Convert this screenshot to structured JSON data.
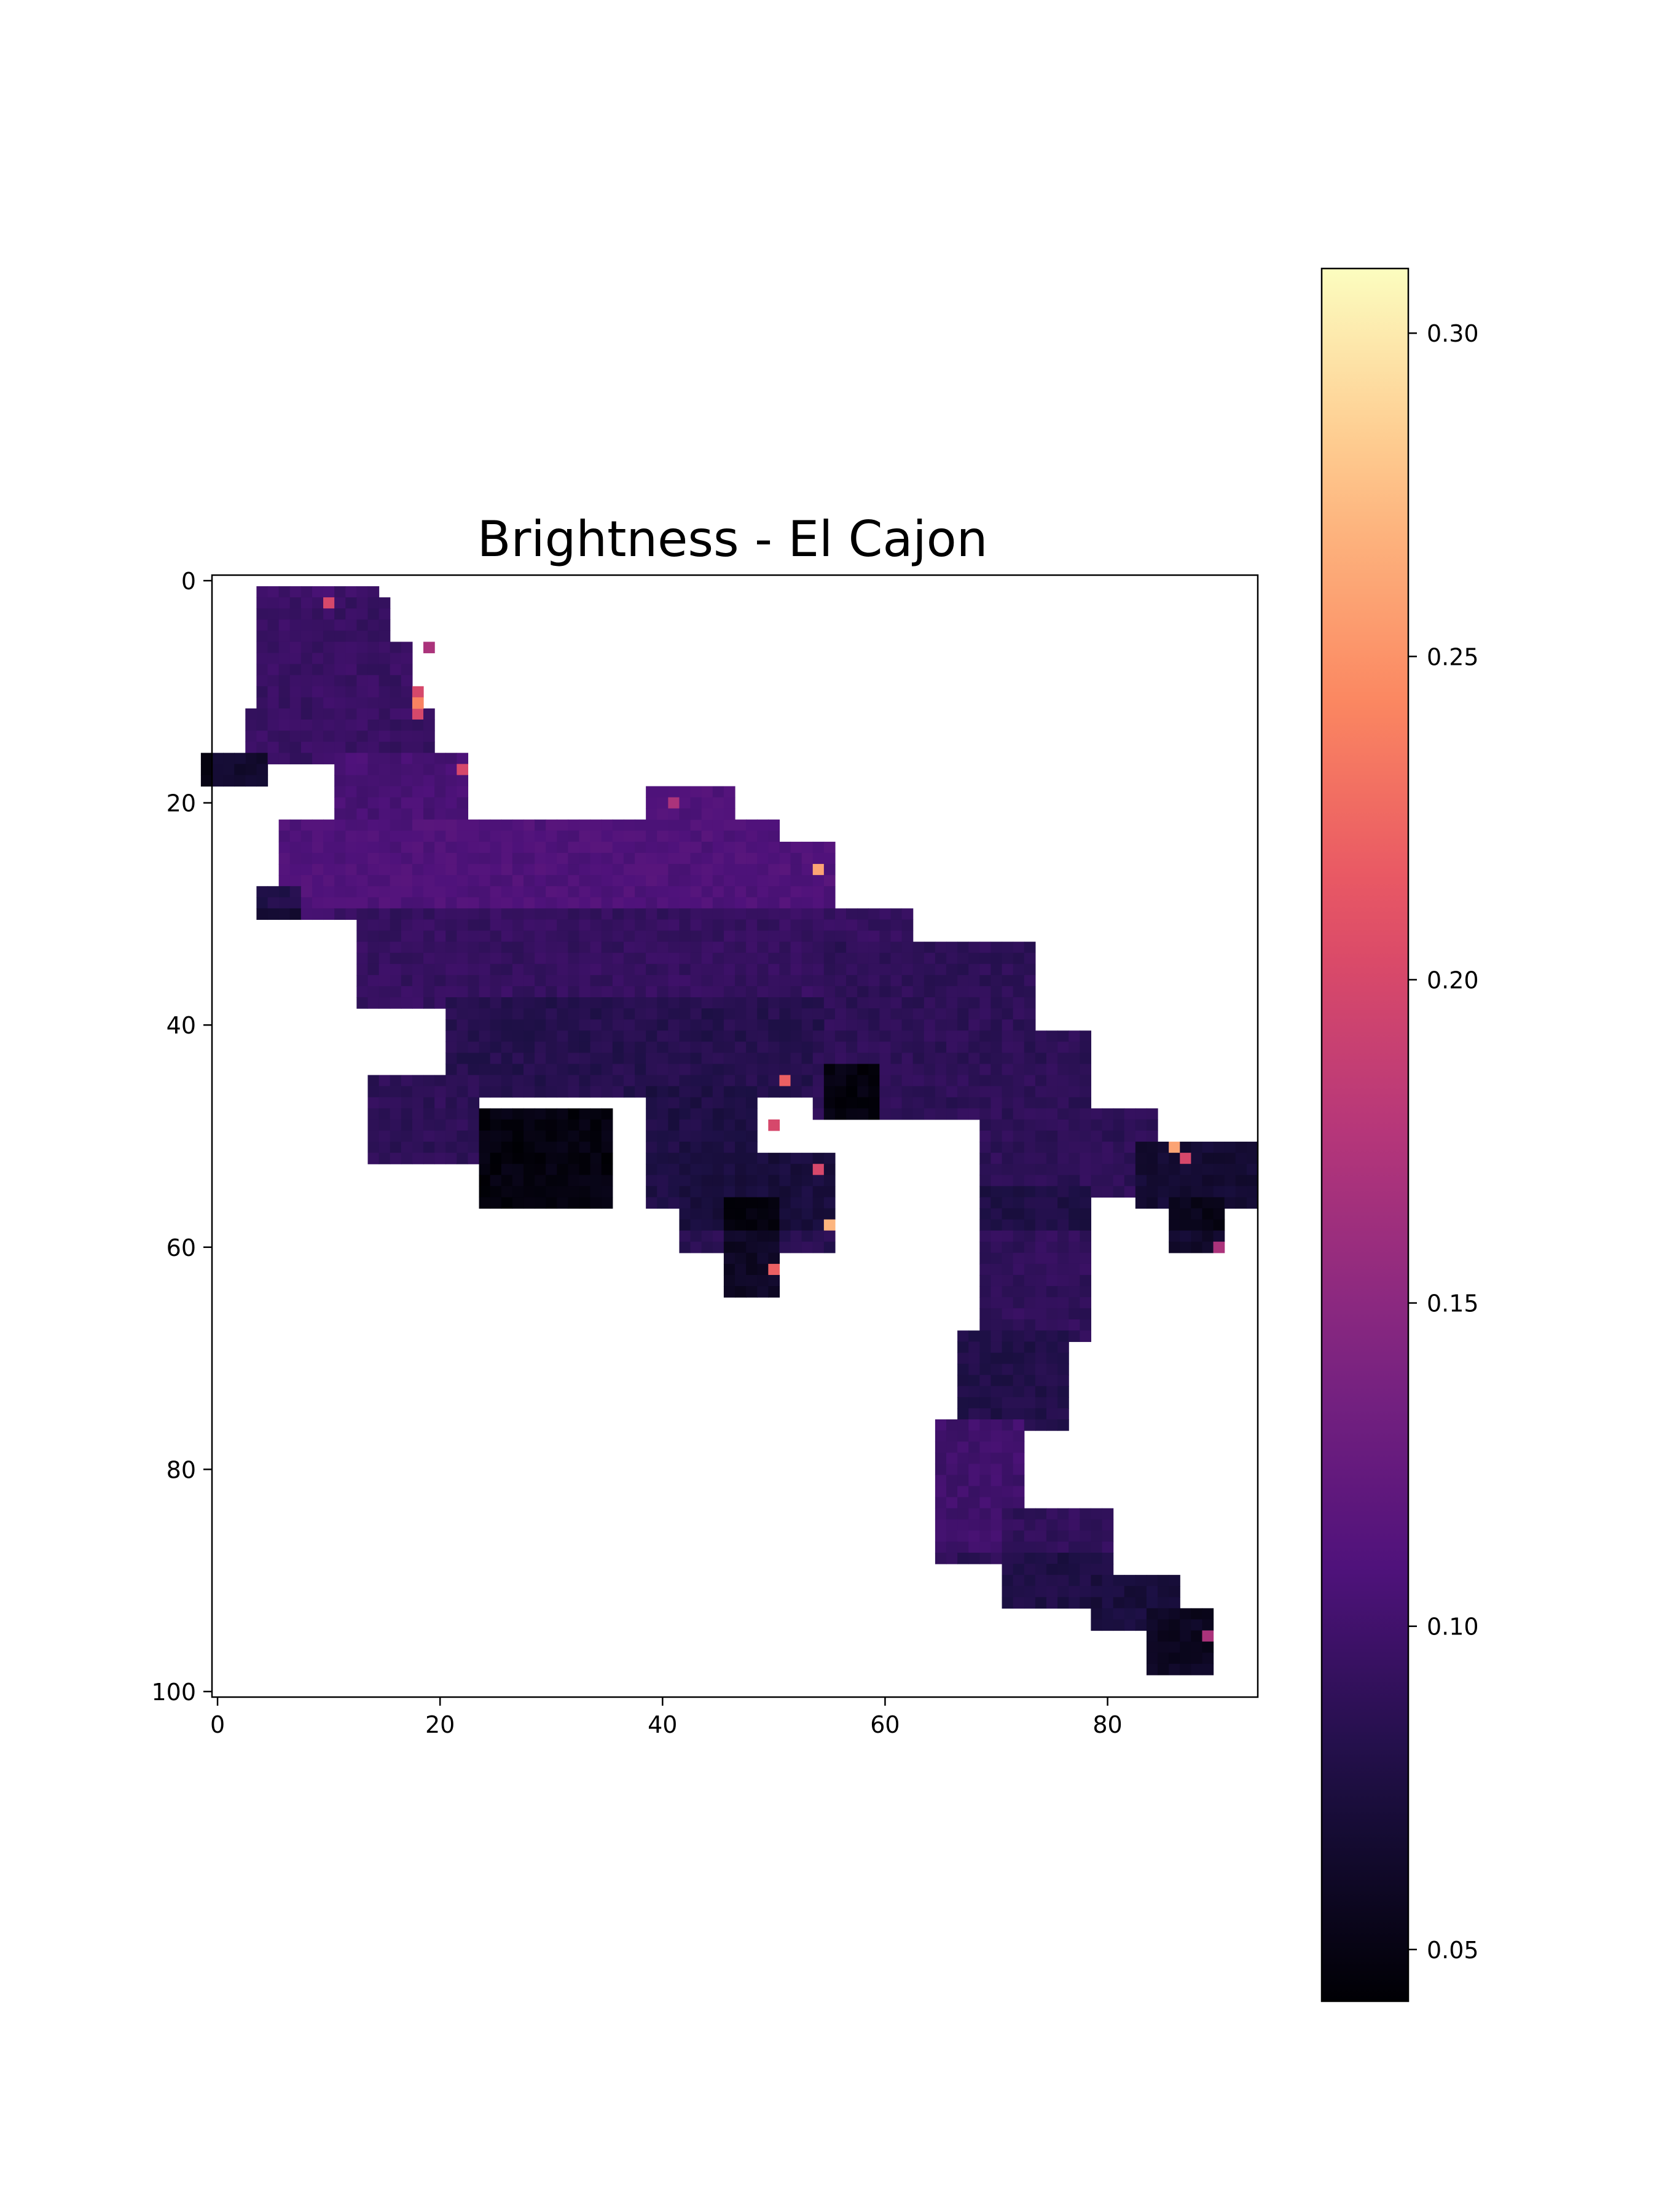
{
  "chart_data": {
    "type": "heatmap",
    "title": "Brightness - El Cajon",
    "xlabel": "",
    "ylabel": "",
    "x_ticks": [
      "0",
      "20",
      "40",
      "60",
      "80"
    ],
    "y_ticks": [
      "0",
      "20",
      "40",
      "60",
      "80",
      "100"
    ],
    "xlim": [
      -0.5,
      93.5
    ],
    "ylim": [
      100.5,
      -0.5
    ],
    "colormap": "magma",
    "colorbar": {
      "range": [
        0.042,
        0.31
      ],
      "ticks": [
        "0.05",
        "0.10",
        "0.15",
        "0.20",
        "0.25",
        "0.30"
      ],
      "tick_values": [
        0.05,
        0.1,
        0.15,
        0.2,
        0.25,
        0.3
      ]
    },
    "grid": false,
    "typical_value": 0.1,
    "region_extents": [
      {
        "rows": [
          1,
          2
        ],
        "cols": [
          4,
          14
        ],
        "value": 0.1
      },
      {
        "rows": [
          2,
          6
        ],
        "cols": [
          4,
          15
        ],
        "value": 0.095
      },
      {
        "rows": [
          6,
          12
        ],
        "cols": [
          4,
          17
        ],
        "value": 0.095
      },
      {
        "rows": [
          12,
          16
        ],
        "cols": [
          3,
          19
        ],
        "value": 0.095
      },
      {
        "rows": [
          16,
          18
        ],
        "cols": [
          -1,
          4
        ],
        "value": 0.065
      },
      {
        "rows": [
          16,
          22
        ],
        "cols": [
          11,
          22
        ],
        "value": 0.105
      },
      {
        "rows": [
          22,
          30
        ],
        "cols": [
          6,
          50
        ],
        "value": 0.11
      },
      {
        "rows": [
          19,
          24
        ],
        "cols": [
          39,
          46
        ],
        "value": 0.11
      },
      {
        "rows": [
          24,
          30
        ],
        "cols": [
          40,
          55
        ],
        "value": 0.11
      },
      {
        "rows": [
          28,
          30
        ],
        "cols": [
          4,
          7
        ],
        "value": 0.08
      },
      {
        "rows": [
          30,
          38
        ],
        "cols": [
          13,
          62
        ],
        "value": 0.105
      },
      {
        "rows": [
          33,
          40
        ],
        "cols": [
          55,
          73
        ],
        "value": 0.1
      },
      {
        "rows": [
          38,
          46
        ],
        "cols": [
          21,
          54
        ],
        "value": 0.095
      },
      {
        "rows": [
          41,
          48
        ],
        "cols": [
          54,
          78
        ],
        "value": 0.1
      },
      {
        "rows": [
          44,
          48
        ],
        "cols": [
          55,
          59
        ],
        "value": 0.06
      },
      {
        "rows": [
          45,
          52
        ],
        "cols": [
          14,
          23
        ],
        "value": 0.1
      },
      {
        "rows": [
          48,
          56
        ],
        "cols": [
          24,
          35
        ],
        "value": 0.06
      },
      {
        "rows": [
          46,
          56
        ],
        "cols": [
          39,
          48
        ],
        "value": 0.09
      },
      {
        "rows": [
          52,
          60
        ],
        "cols": [
          42,
          55
        ],
        "value": 0.085
      },
      {
        "rows": [
          56,
          64
        ],
        "cols": [
          46,
          50
        ],
        "value": 0.06
      },
      {
        "rows": [
          48,
          55
        ],
        "cols": [
          69,
          84
        ],
        "value": 0.1
      },
      {
        "rows": [
          51,
          56
        ],
        "cols": [
          83,
          93
        ],
        "value": 0.08
      },
      {
        "rows": [
          56,
          60
        ],
        "cols": [
          86,
          90
        ],
        "value": 0.065
      },
      {
        "rows": [
          55,
          68
        ],
        "cols": [
          69,
          78
        ],
        "value": 0.09
      },
      {
        "rows": [
          68,
          76
        ],
        "cols": [
          67,
          76
        ],
        "value": 0.08
      },
      {
        "rows": [
          76,
          88
        ],
        "cols": [
          65,
          72
        ],
        "value": 0.1
      },
      {
        "rows": [
          84,
          92
        ],
        "cols": [
          71,
          80
        ],
        "value": 0.09
      },
      {
        "rows": [
          90,
          94
        ],
        "cols": [
          79,
          86
        ],
        "value": 0.085
      },
      {
        "rows": [
          93,
          98
        ],
        "cols": [
          84,
          89
        ],
        "value": 0.07
      }
    ],
    "bright_edge_pixels": [
      {
        "row": 2,
        "col": 10,
        "value": 0.2
      },
      {
        "row": 6,
        "col": 19,
        "value": 0.17
      },
      {
        "row": 10,
        "col": 18,
        "value": 0.2
      },
      {
        "row": 11,
        "col": 18,
        "value": 0.24
      },
      {
        "row": 12,
        "col": 18,
        "value": 0.2
      },
      {
        "row": 17,
        "col": 22,
        "value": 0.2
      },
      {
        "row": 20,
        "col": 41,
        "value": 0.17
      },
      {
        "row": 26,
        "col": 54,
        "value": 0.26
      },
      {
        "row": 45,
        "col": 51,
        "value": 0.22
      },
      {
        "row": 49,
        "col": 50,
        "value": 0.2
      },
      {
        "row": 53,
        "col": 54,
        "value": 0.2
      },
      {
        "row": 58,
        "col": 55,
        "value": 0.27
      },
      {
        "row": 62,
        "col": 50,
        "value": 0.22
      },
      {
        "row": 51,
        "col": 86,
        "value": 0.26
      },
      {
        "row": 52,
        "col": 87,
        "value": 0.2
      },
      {
        "row": 60,
        "col": 90,
        "value": 0.17
      },
      {
        "row": 95,
        "col": 89,
        "value": 0.17
      }
    ]
  }
}
